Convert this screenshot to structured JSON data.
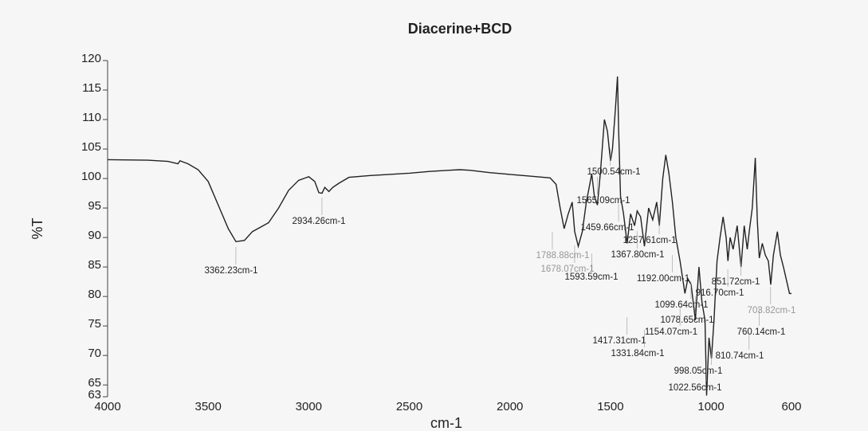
{
  "chart_data": {
    "type": "line",
    "title": "Diacerine+BCD",
    "x_label": "cm-1",
    "y_label": "%T",
    "x": [
      4000,
      3800,
      3700,
      3650,
      3640,
      3600,
      3550,
      3500,
      3450,
      3400,
      3362,
      3320,
      3280,
      3200,
      3150,
      3100,
      3050,
      3000,
      2970,
      2950,
      2934,
      2920,
      2900,
      2880,
      2850,
      2800,
      2700,
      2600,
      2500,
      2400,
      2300,
      2250,
      2200,
      2100,
      2000,
      1900,
      1800,
      1770,
      1750,
      1730,
      1710,
      1690,
      1678,
      1660,
      1640,
      1620,
      1600,
      1593,
      1580,
      1565,
      1550,
      1530,
      1515,
      1500,
      1490,
      1475,
      1465,
      1459,
      1450,
      1435,
      1417,
      1400,
      1380,
      1367,
      1350,
      1331,
      1310,
      1290,
      1270,
      1257,
      1240,
      1225,
      1210,
      1192,
      1175,
      1154,
      1130,
      1115,
      1099,
      1078,
      1060,
      1045,
      1030,
      1022,
      1010,
      998,
      985,
      970,
      955,
      940,
      925,
      916,
      905,
      890,
      870,
      851,
      835,
      820,
      810,
      795,
      780,
      770,
      760,
      745,
      730,
      715,
      703,
      690,
      670,
      655,
      640,
      620,
      610,
      600
    ],
    "series": [
      {
        "name": "%T",
        "color": "#222222",
        "values": [
          103.2,
          103.1,
          102.9,
          102.5,
          103,
          102.5,
          101.5,
          99.5,
          95.5,
          91.5,
          89.3,
          89.5,
          91,
          92.5,
          95,
          98,
          99.7,
          100.3,
          99.5,
          97.6,
          97.5,
          98.5,
          97.8,
          98.5,
          99.2,
          100.2,
          100.5,
          100.7,
          100.9,
          101.2,
          101.4,
          101.5,
          101.4,
          101,
          100.7,
          100.4,
          100.1,
          99,
          95,
          91.5,
          94,
          96,
          91,
          88.5,
          91,
          96,
          99.5,
          100.8,
          97,
          95.5,
          101,
          110,
          108,
          103,
          105,
          112,
          117.3,
          108,
          97,
          94,
          89,
          94,
          92,
          94.5,
          93.5,
          88.5,
          95,
          93,
          96,
          92,
          100,
          104,
          101,
          96,
          90,
          86,
          80.5,
          83,
          82,
          76,
          85,
          79,
          76,
          63.2,
          73,
          69.5,
          76,
          86,
          90,
          93.5,
          90,
          86,
          90,
          88,
          92,
          85,
          92,
          88,
          91,
          95,
          103.5,
          93,
          86.5,
          89,
          87,
          86,
          82,
          87,
          91,
          87,
          85,
          82,
          80.5,
          80.5
        ]
      }
    ],
    "xlim": [
      4000,
      600
    ],
    "ylim": [
      63,
      120
    ],
    "xticks": [
      4000,
      3500,
      3000,
      2500,
      2000,
      1500,
      1000,
      600
    ],
    "yticks": [
      63,
      65,
      70,
      75,
      80,
      85,
      90,
      95,
      100,
      105,
      110,
      115,
      120
    ],
    "annotations": [
      "3362.23cm-1",
      "2934.26cm-1",
      "1500.54cm-1",
      "1565.09cm-1",
      "1459.66cm-1",
      "1257.61cm-1",
      "1367.80cm-1",
      "1593.59cm-1",
      "1192.00cm-1",
      "851.72cm-1",
      "916.70cm-1",
      "1099.64cm-1",
      "1078.65cm-1",
      "1154.07cm-1",
      "760.14cm-1",
      "1417.31cm-1",
      "1331.84cm-1",
      "810.74cm-1",
      "998.05cm-1",
      "1022.56cm-1",
      "1678.07cm-1",
      "1788.88cm-1",
      "703.82cm-1"
    ]
  }
}
